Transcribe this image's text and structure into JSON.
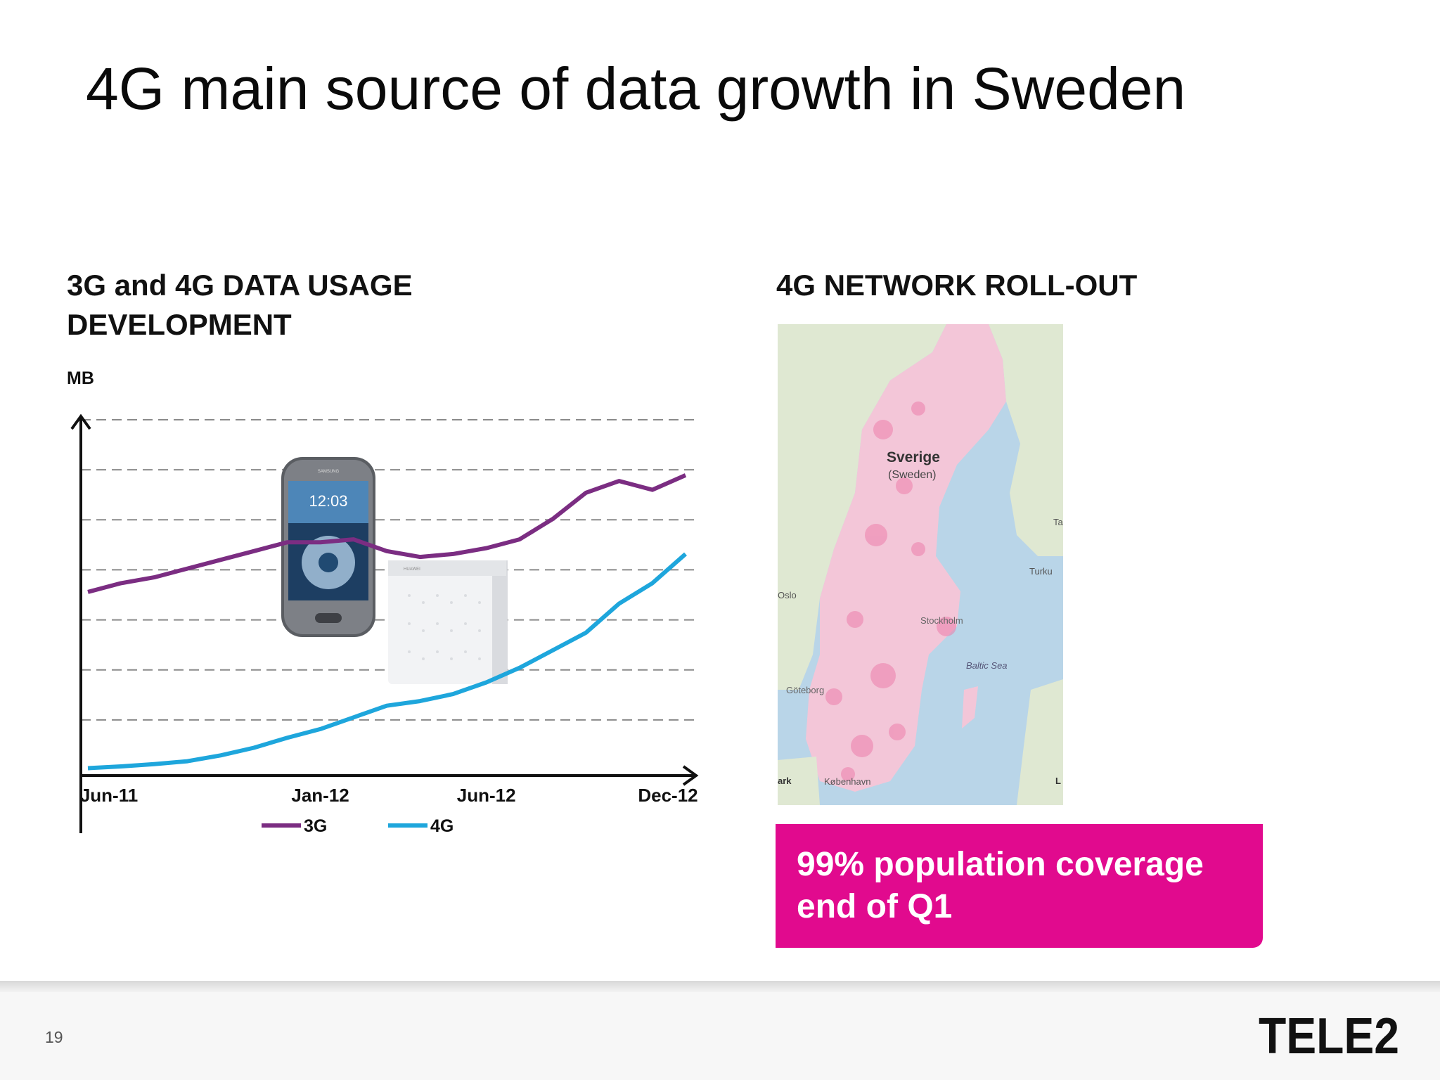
{
  "slide": {
    "title": "4G main source of data growth in Sweden",
    "page_number": "19",
    "logo_text": "TELE2"
  },
  "left_panel": {
    "heading_line1": "3G and 4G DATA USAGE",
    "heading_line2": "DEVELOPMENT",
    "unit": "MB"
  },
  "right_panel": {
    "heading": "4G NETWORK ROLL-OUT",
    "map_labels": {
      "country": "Sverige",
      "country_en": "(Sweden)",
      "city1": "Stockholm",
      "city2": "Göteborg",
      "city3": "Oslo",
      "city4": "Turku",
      "city5": "København",
      "sea": "Baltic Sea",
      "edge1": "Ta",
      "edge2": "ark",
      "edge3": "L"
    },
    "callout_line1": "99% population coverage",
    "callout_line2": "end of Q1"
  },
  "colors": {
    "series_3g": "#7b2d82",
    "series_4g": "#1ea6dc",
    "callout": "#e10a8e",
    "grid": "#8a8a8a"
  },
  "chart_data": {
    "type": "line",
    "title": "3G and 4G DATA USAGE DEVELOPMENT",
    "ylabel": "MB",
    "xlabel": "",
    "x_ticks": [
      "Jun-11",
      "Jan-12",
      "Jun-12",
      "Dec-12"
    ],
    "x": [
      "Jun-11",
      "Jul-11",
      "Aug-11",
      "Sep-11",
      "Oct-11",
      "Nov-11",
      "Dec-11",
      "Jan-12",
      "Feb-12",
      "Mar-12",
      "Apr-12",
      "May-12",
      "Jun-12",
      "Jul-12",
      "Aug-12",
      "Sep-12",
      "Oct-12",
      "Nov-12",
      "Dec-12"
    ],
    "y_gridlines": 6,
    "ylim": [
      0,
      6
    ],
    "y_tick_labels_visible": false,
    "grid": true,
    "legend_position": "bottom",
    "series": [
      {
        "name": "3G",
        "values": [
          3.05,
          3.2,
          3.3,
          3.45,
          3.6,
          3.75,
          3.9,
          3.9,
          3.95,
          3.75,
          3.65,
          3.7,
          3.8,
          3.95,
          4.3,
          4.75,
          4.95,
          4.8,
          5.05
        ]
      },
      {
        "name": "4G",
        "values": [
          0.03,
          0.06,
          0.1,
          0.15,
          0.25,
          0.38,
          0.55,
          0.7,
          0.9,
          1.1,
          1.18,
          1.3,
          1.5,
          1.75,
          2.05,
          2.35,
          2.85,
          3.2,
          3.7
        ]
      }
    ]
  }
}
